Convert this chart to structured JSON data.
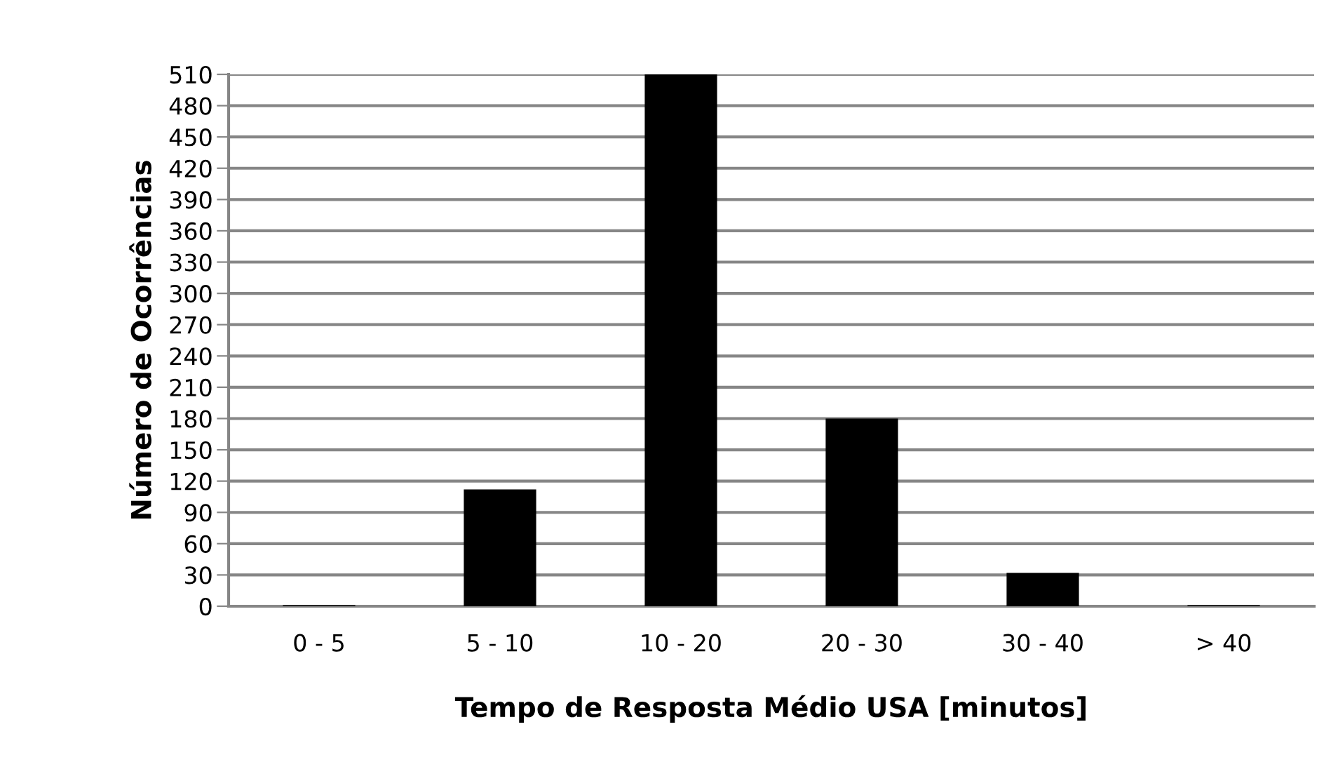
{
  "chart_data": {
    "type": "bar",
    "xlabel": "Tempo de Resposta Médio USA [minutos]",
    "ylabel": "Número de Ocorrências",
    "categories": [
      "0 - 5",
      "5 - 10",
      "10 - 20",
      "20 - 30",
      "30 - 40",
      "> 40"
    ],
    "values": [
      1,
      112,
      510,
      180,
      32,
      1
    ],
    "color": "#000000",
    "ylim": [
      0,
      510
    ],
    "yticks": [
      0,
      30,
      60,
      90,
      120,
      150,
      180,
      210,
      240,
      270,
      300,
      330,
      360,
      390,
      420,
      450,
      480,
      510
    ],
    "grid": "y"
  }
}
